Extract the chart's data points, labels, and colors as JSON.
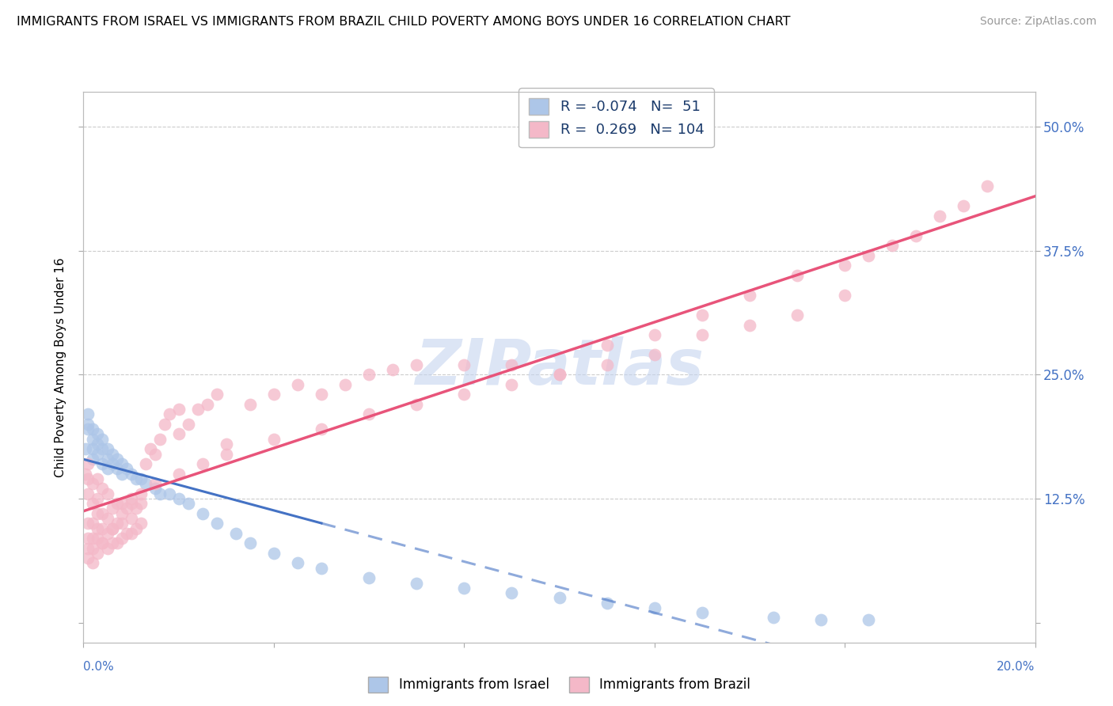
{
  "title": "IMMIGRANTS FROM ISRAEL VS IMMIGRANTS FROM BRAZIL CHILD POVERTY AMONG BOYS UNDER 16 CORRELATION CHART",
  "source": "Source: ZipAtlas.com",
  "ylabel": "Child Poverty Among Boys Under 16",
  "xlim": [
    0.0,
    0.2
  ],
  "ylim": [
    -0.02,
    0.535
  ],
  "israel_R": -0.074,
  "israel_N": 51,
  "brazil_R": 0.269,
  "brazil_N": 104,
  "israel_color": "#adc6e8",
  "brazil_color": "#f4b8c8",
  "israel_line_color": "#4472c4",
  "brazil_line_color": "#e8547a",
  "watermark": "ZIPatlas",
  "legend_israel": "Immigrants from Israel",
  "legend_brazil": "Immigrants from Brazil",
  "yticks": [
    0.0,
    0.125,
    0.25,
    0.375,
    0.5
  ],
  "yticklabels_right": [
    "",
    "12.5%",
    "25.0%",
    "37.5%",
    "50.0%"
  ],
  "xtick_label_left": "0.0%",
  "xtick_label_right": "20.0%",
  "title_fontsize": 11.5,
  "source_fontsize": 10,
  "axis_label_color": "#4472c4",
  "legend_text_color": "#1a3a6b",
  "grid_color": "#cccccc",
  "scatter_size": 130,
  "trend_linewidth": 2.2,
  "israel_x": [
    0.0005,
    0.001,
    0.001,
    0.001,
    0.002,
    0.002,
    0.002,
    0.002,
    0.003,
    0.003,
    0.003,
    0.004,
    0.004,
    0.004,
    0.005,
    0.005,
    0.005,
    0.006,
    0.006,
    0.007,
    0.007,
    0.008,
    0.008,
    0.009,
    0.01,
    0.011,
    0.012,
    0.013,
    0.015,
    0.016,
    0.018,
    0.02,
    0.022,
    0.025,
    0.028,
    0.032,
    0.035,
    0.04,
    0.045,
    0.05,
    0.06,
    0.07,
    0.08,
    0.09,
    0.1,
    0.11,
    0.12,
    0.13,
    0.145,
    0.155,
    0.165
  ],
  "israel_y": [
    0.175,
    0.2,
    0.21,
    0.195,
    0.185,
    0.175,
    0.165,
    0.195,
    0.17,
    0.18,
    0.19,
    0.16,
    0.175,
    0.185,
    0.155,
    0.165,
    0.175,
    0.16,
    0.17,
    0.155,
    0.165,
    0.15,
    0.16,
    0.155,
    0.15,
    0.145,
    0.145,
    0.14,
    0.135,
    0.13,
    0.13,
    0.125,
    0.12,
    0.11,
    0.1,
    0.09,
    0.08,
    0.07,
    0.06,
    0.055,
    0.045,
    0.04,
    0.035,
    0.03,
    0.025,
    0.02,
    0.015,
    0.01,
    0.005,
    0.003,
    0.003
  ],
  "brazil_x": [
    0.0005,
    0.001,
    0.001,
    0.001,
    0.001,
    0.002,
    0.002,
    0.002,
    0.002,
    0.003,
    0.003,
    0.003,
    0.003,
    0.003,
    0.004,
    0.004,
    0.004,
    0.004,
    0.005,
    0.005,
    0.005,
    0.005,
    0.006,
    0.006,
    0.006,
    0.007,
    0.007,
    0.007,
    0.008,
    0.008,
    0.008,
    0.009,
    0.009,
    0.01,
    0.01,
    0.01,
    0.011,
    0.011,
    0.012,
    0.012,
    0.013,
    0.014,
    0.015,
    0.016,
    0.017,
    0.018,
    0.02,
    0.02,
    0.022,
    0.024,
    0.026,
    0.028,
    0.03,
    0.035,
    0.04,
    0.045,
    0.05,
    0.055,
    0.06,
    0.065,
    0.07,
    0.08,
    0.09,
    0.1,
    0.11,
    0.12,
    0.13,
    0.14,
    0.15,
    0.16,
    0.165,
    0.17,
    0.175,
    0.18,
    0.185,
    0.19,
    0.16,
    0.15,
    0.14,
    0.13,
    0.12,
    0.11,
    0.1,
    0.09,
    0.08,
    0.07,
    0.06,
    0.05,
    0.04,
    0.03,
    0.025,
    0.02,
    0.015,
    0.012,
    0.01,
    0.008,
    0.006,
    0.004,
    0.003,
    0.002,
    0.002,
    0.001,
    0.001,
    0.001
  ],
  "brazil_y": [
    0.15,
    0.1,
    0.13,
    0.145,
    0.16,
    0.085,
    0.1,
    0.12,
    0.14,
    0.085,
    0.095,
    0.11,
    0.125,
    0.145,
    0.08,
    0.095,
    0.11,
    0.135,
    0.075,
    0.09,
    0.105,
    0.13,
    0.08,
    0.095,
    0.115,
    0.08,
    0.1,
    0.12,
    0.085,
    0.1,
    0.12,
    0.09,
    0.115,
    0.09,
    0.105,
    0.125,
    0.095,
    0.115,
    0.1,
    0.12,
    0.16,
    0.175,
    0.17,
    0.185,
    0.2,
    0.21,
    0.19,
    0.215,
    0.2,
    0.215,
    0.22,
    0.23,
    0.18,
    0.22,
    0.23,
    0.24,
    0.23,
    0.24,
    0.25,
    0.255,
    0.26,
    0.26,
    0.26,
    0.25,
    0.28,
    0.29,
    0.31,
    0.33,
    0.35,
    0.36,
    0.37,
    0.38,
    0.39,
    0.41,
    0.42,
    0.44,
    0.33,
    0.31,
    0.3,
    0.29,
    0.27,
    0.26,
    0.25,
    0.24,
    0.23,
    0.22,
    0.21,
    0.195,
    0.185,
    0.17,
    0.16,
    0.15,
    0.14,
    0.13,
    0.12,
    0.11,
    0.095,
    0.08,
    0.07,
    0.06,
    0.075,
    0.065,
    0.075,
    0.085
  ]
}
